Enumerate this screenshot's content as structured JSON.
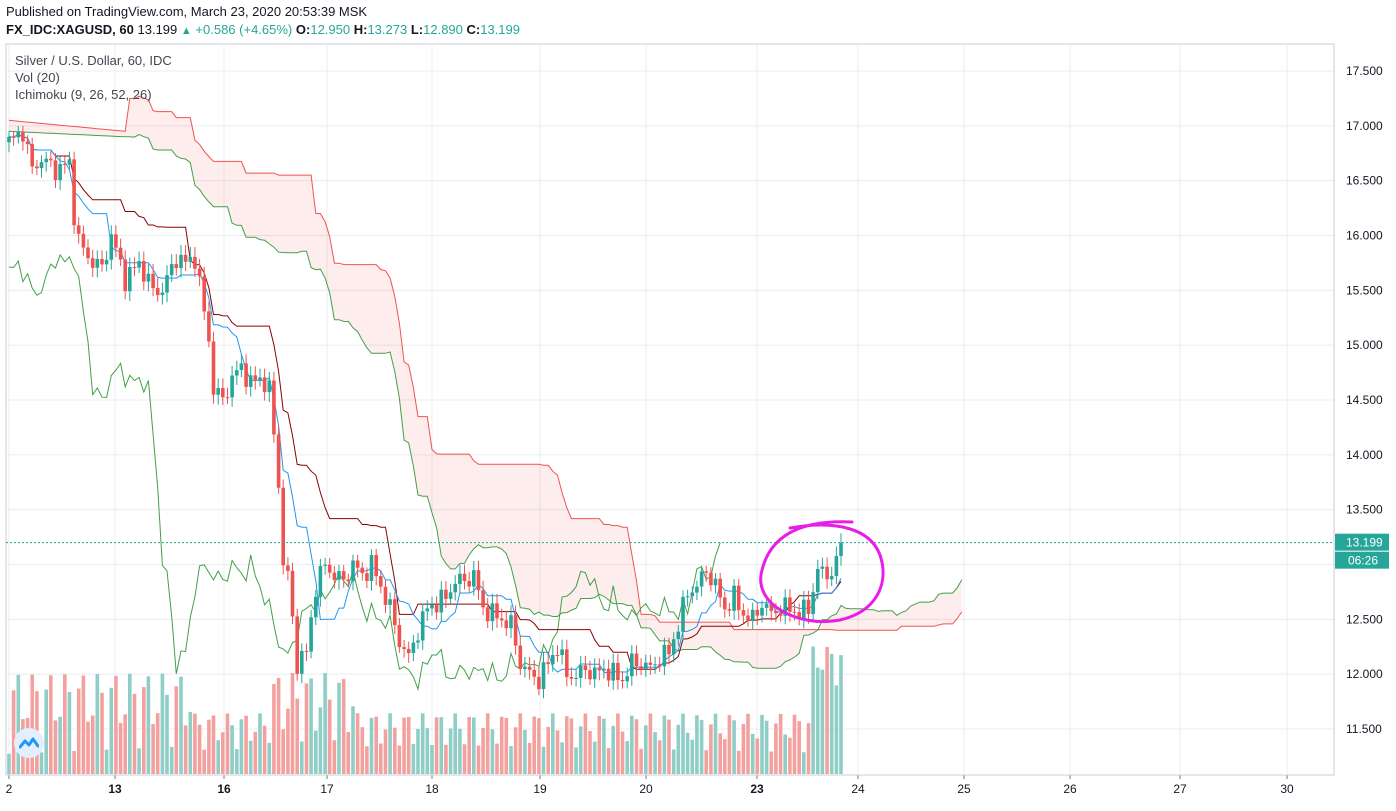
{
  "header": {
    "published": "Published on TradingView.com, March 23, 2020 20:53:39 MSK",
    "symbol": "FX_IDC:XAGUSD, 60",
    "last": "13.199",
    "change": "+0.586 (+4.65%)",
    "open_label": "O:",
    "open": "12.950",
    "high_label": "H:",
    "high": "13.273",
    "low_label": "L:",
    "low": "12.890",
    "close_label": "C:",
    "close": "13.199"
  },
  "legend": {
    "title": "Silver / U.S. Dollar, 60, IDC",
    "volume": "Vol (20)",
    "indicator": "Ichimoku (9, 26, 52, 26)"
  },
  "price_badge": {
    "value": "13.199",
    "countdown": "06:26"
  },
  "colors": {
    "up": "#26a69a",
    "down": "#ef5350",
    "vol_up": "#8fcdc7",
    "vol_down": "#f3a19e",
    "tenkan": "#2196f3",
    "kijun": "#8b0000",
    "chikou": "#43a047",
    "span_a": "#43a047",
    "span_b": "#ef5350",
    "cloud_bear": "rgba(239,83,80,0.10)",
    "cloud_bull": "rgba(67,160,71,0.10)",
    "annotation": "#e81ee8",
    "grid": "#e9ecf1"
  },
  "chart_data": {
    "type": "candlestick",
    "timeframe": "60",
    "y_ticks": [
      "17.500",
      "17.000",
      "16.500",
      "16.000",
      "15.500",
      "15.000",
      "14.500",
      "14.000",
      "13.500",
      "13.000",
      "12.500",
      "12.000",
      "11.500"
    ],
    "ylim": [
      11.22,
      17.85
    ],
    "x_ticks": [
      "2",
      "13",
      "16",
      "17",
      "18",
      "19",
      "20",
      "23",
      "24",
      "25",
      "26",
      "27",
      "30"
    ],
    "current_price": 13.199,
    "ohlc_anchors": [
      [
        0,
        16.85
      ],
      [
        3,
        16.95
      ],
      [
        5,
        16.6
      ],
      [
        7,
        16.7
      ],
      [
        10,
        16.6
      ],
      [
        13,
        16.65
      ],
      [
        14,
        16.2
      ],
      [
        15,
        15.95
      ],
      [
        17,
        15.8
      ],
      [
        20,
        15.7
      ],
      [
        22,
        16.0
      ],
      [
        25,
        15.6
      ],
      [
        28,
        15.75
      ],
      [
        31,
        15.5
      ],
      [
        33,
        15.5
      ],
      [
        36,
        15.8
      ],
      [
        38,
        15.75
      ],
      [
        40,
        15.8
      ],
      [
        43,
        15.05
      ],
      [
        44,
        14.6
      ],
      [
        46,
        14.5
      ],
      [
        48,
        14.7
      ],
      [
        50,
        14.8
      ],
      [
        52,
        14.65
      ],
      [
        54,
        14.7
      ],
      [
        56,
        14.6
      ],
      [
        58,
        13.75
      ],
      [
        59,
        13.0
      ],
      [
        60,
        12.9
      ],
      [
        62,
        12.1
      ],
      [
        64,
        12.2
      ],
      [
        66,
        12.8
      ],
      [
        68,
        13.0
      ],
      [
        70,
        12.9
      ],
      [
        72,
        12.85
      ],
      [
        74,
        13.0
      ],
      [
        76,
        12.9
      ],
      [
        78,
        13.0
      ],
      [
        80,
        12.8
      ],
      [
        82,
        12.6
      ],
      [
        84,
        12.3
      ],
      [
        86,
        12.15
      ],
      [
        88,
        12.4
      ],
      [
        90,
        12.6
      ],
      [
        92,
        12.65
      ],
      [
        94,
        12.7
      ],
      [
        96,
        12.85
      ],
      [
        98,
        12.85
      ],
      [
        100,
        12.9
      ],
      [
        102,
        12.6
      ],
      [
        104,
        12.55
      ],
      [
        106,
        12.5
      ],
      [
        108,
        12.45
      ],
      [
        110,
        12.1
      ],
      [
        112,
        12.0
      ],
      [
        114,
        11.95
      ],
      [
        116,
        12.1
      ],
      [
        118,
        12.25
      ],
      [
        120,
        12.0
      ],
      [
        122,
        11.98
      ],
      [
        124,
        12.05
      ],
      [
        126,
        12.0
      ],
      [
        128,
        12.05
      ],
      [
        130,
        12.0
      ],
      [
        132,
        11.95
      ],
      [
        134,
        12.1
      ],
      [
        136,
        12.1
      ],
      [
        138,
        12.05
      ],
      [
        140,
        12.15
      ],
      [
        142,
        12.2
      ],
      [
        144,
        12.45
      ],
      [
        146,
        12.75
      ],
      [
        148,
        12.8
      ],
      [
        150,
        12.95
      ],
      [
        152,
        12.8
      ],
      [
        154,
        12.6
      ],
      [
        156,
        12.7
      ],
      [
        158,
        12.55
      ],
      [
        160,
        12.5
      ],
      [
        162,
        12.65
      ],
      [
        164,
        12.55
      ],
      [
        166,
        12.6
      ],
      [
        168,
        12.6
      ],
      [
        170,
        12.55
      ],
      [
        172,
        12.6
      ],
      [
        174,
        12.95
      ],
      [
        176,
        12.9
      ],
      [
        178,
        13.0
      ],
      [
        179,
        13.199
      ]
    ],
    "volume_range": [
      0,
      1
    ]
  }
}
